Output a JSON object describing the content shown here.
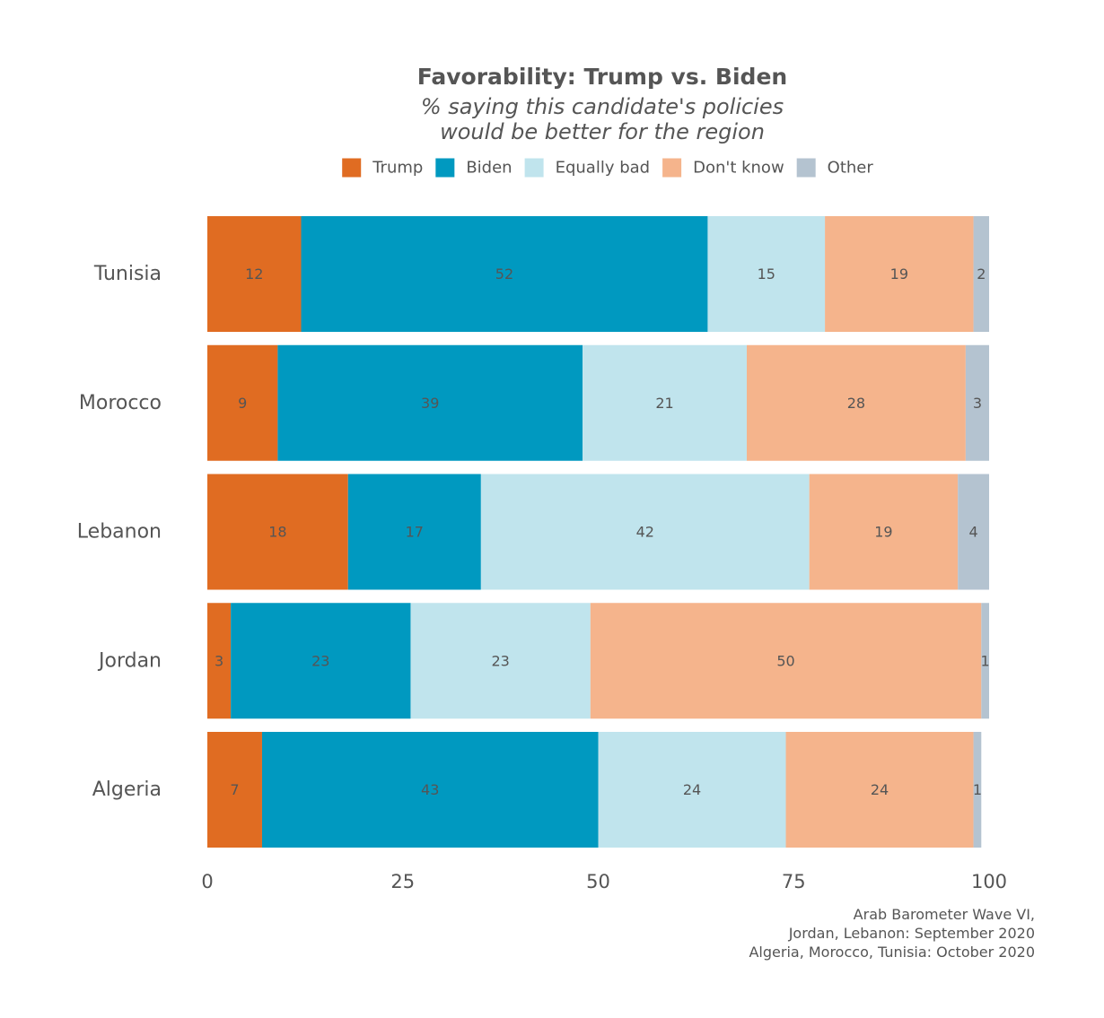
{
  "chart_data": {
    "type": "bar",
    "orientation": "horizontal",
    "stacked": true,
    "title": "Favorability: Trump vs. Biden",
    "subtitle_lines": [
      "% saying this candidate's policies",
      "would be better for the region"
    ],
    "categories": [
      "Tunisia",
      "Morocco",
      "Lebanon",
      "Jordan",
      "Algeria"
    ],
    "series": [
      {
        "name": "Trump",
        "color": "#e06c22",
        "values": [
          12,
          9,
          18,
          3,
          7
        ]
      },
      {
        "name": "Biden",
        "color": "#0099c0",
        "values": [
          52,
          39,
          17,
          23,
          43
        ]
      },
      {
        "name": "Equally bad",
        "color": "#c0e4ed",
        "values": [
          15,
          21,
          42,
          23,
          24
        ]
      },
      {
        "name": "Don't know",
        "color": "#f5b48c",
        "values": [
          19,
          28,
          19,
          50,
          24
        ]
      },
      {
        "name": "Other",
        "color": "#b4c3d0",
        "values": [
          2,
          3,
          4,
          1,
          1
        ]
      }
    ],
    "xlim": [
      0,
      100
    ],
    "xticks": [
      0,
      25,
      50,
      75,
      100
    ],
    "xlabel": "",
    "ylabel": "",
    "grid": false,
    "legend_position": "top",
    "caption_lines": [
      "Arab Barometer Wave VI,",
      "Jordan, Lebanon: September 2020",
      "Algeria, Morocco, Tunisia: October 2020"
    ]
  }
}
